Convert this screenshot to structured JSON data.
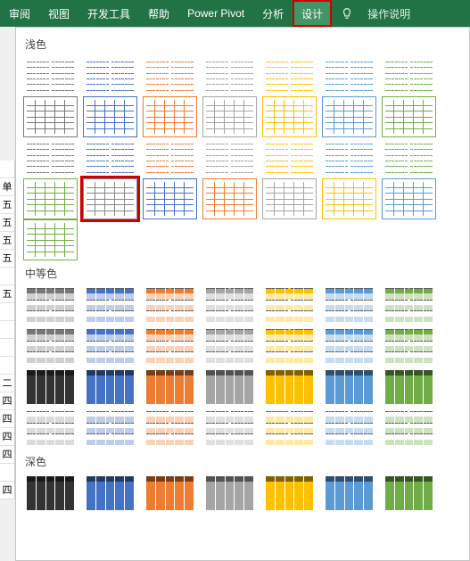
{
  "ribbon": {
    "tabs": [
      {
        "label": "审阅"
      },
      {
        "label": "视图"
      },
      {
        "label": "开发工具"
      },
      {
        "label": "帮助"
      },
      {
        "label": "Power Pivot"
      },
      {
        "label": "分析"
      },
      {
        "label": "设计",
        "highlighted": true
      }
    ],
    "tell_me": "操作说明"
  },
  "left_strip": {
    "cells": [
      "",
      "单价",
      "五",
      "五",
      "五",
      "五",
      "",
      "五月",
      "",
      "",
      "",
      "",
      "二月",
      "四",
      "四",
      "四",
      "四",
      "",
      "四月"
    ]
  },
  "gallery": {
    "sections": [
      {
        "label": "浅色",
        "rows": [
          {
            "variant": "dash",
            "colors": [
              "#777777",
              "#4472c4",
              "#ed7d31",
              "#a5a5a5",
              "#ffc000",
              "#5b9bd5",
              "#70ad47"
            ]
          },
          {
            "variant": "boxed",
            "colors": [
              "#777777",
              "#4472c4",
              "#ed7d31",
              "#a5a5a5",
              "#ffc000",
              "#5b9bd5",
              "#70ad47"
            ]
          },
          {
            "variant": "dash",
            "colors": [
              "#777777",
              "#4472c4",
              "#ed7d31",
              "#a5a5a5",
              "#ffc000",
              "#5b9bd5",
              "#70ad47"
            ]
          },
          {
            "variant": "boxed",
            "selected_index": 1,
            "colors": [
              "#70ad47",
              "#888888",
              "#4472c4",
              "#ed7d31",
              "#a5a5a5",
              "#ffc000",
              "#5b9bd5"
            ]
          },
          {
            "variant": "boxed",
            "colors": [
              "#70ad47"
            ]
          }
        ]
      },
      {
        "label": "中等色",
        "rows": [
          {
            "variant": "hdr-solid band",
            "colors": [
              "#777777",
              "#4472c4",
              "#ed7d31",
              "#a5a5a5",
              "#ffc000",
              "#5b9bd5",
              "#70ad47"
            ]
          },
          {
            "variant": "hdr-solid band",
            "colors": [
              "#777777",
              "#4472c4",
              "#ed7d31",
              "#a5a5a5",
              "#ffc000",
              "#5b9bd5",
              "#70ad47"
            ]
          },
          {
            "variant": "dark",
            "colors": [
              "#333333",
              "#4472c4",
              "#ed7d31",
              "#a5a5a5",
              "#ffc000",
              "#5b9bd5",
              "#70ad47"
            ]
          },
          {
            "variant": "band",
            "colors": [
              "#999999",
              "#4472c4",
              "#ed7d31",
              "#a5a5a5",
              "#ffc000",
              "#5b9bd5",
              "#70ad47"
            ]
          }
        ]
      },
      {
        "label": "深色",
        "rows": [
          {
            "variant": "dark",
            "colors": [
              "#333333",
              "#4472c4",
              "#ed7d31",
              "#a5a5a5",
              "#ffc000",
              "#5b9bd5",
              "#70ad47"
            ]
          }
        ]
      }
    ]
  },
  "thumb": {
    "rows": 6,
    "cols": 5
  }
}
